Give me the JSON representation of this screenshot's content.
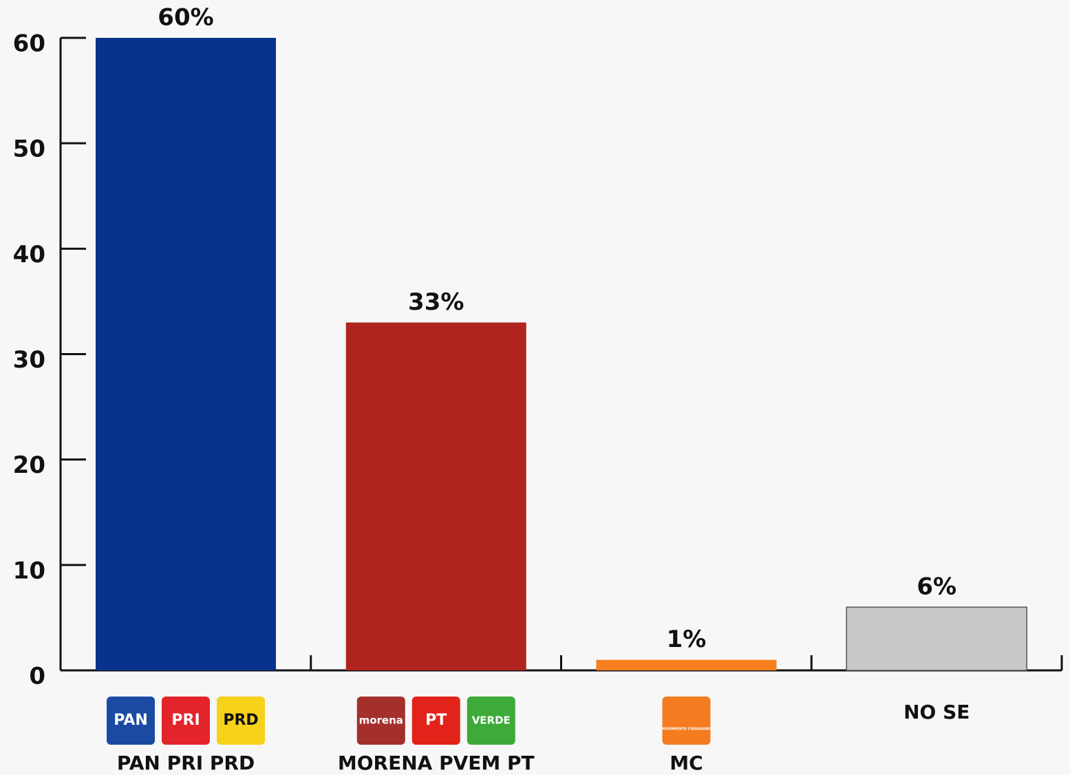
{
  "chart_data": {
    "type": "bar",
    "categories": [
      "PAN PRI PRD",
      "MORENA PVEM PT",
      "MC",
      "NO SE"
    ],
    "values": [
      60,
      33,
      1,
      6
    ],
    "value_labels": [
      "60%",
      "33%",
      "1%",
      "6%"
    ],
    "colors": [
      "#07338c",
      "#b0241f",
      "#f7801e",
      "#c8c8c8"
    ],
    "ylim": [
      0,
      60
    ],
    "yticks": [
      0,
      10,
      20,
      30,
      40,
      50,
      60
    ],
    "logos": [
      [
        {
          "label": "PAN",
          "color": "#1b4aa3"
        },
        {
          "label": "PRI",
          "color": "#e4242b"
        },
        {
          "label": "PRD",
          "color": "#f6d21a"
        }
      ],
      [
        {
          "label": "morena",
          "color": "#a3302b"
        },
        {
          "label": "PT",
          "color": "#e2231a"
        },
        {
          "label": "VERDE",
          "color": "#3daa3a"
        }
      ],
      [
        {
          "label": "MOVIMIENTO CIUDADANO",
          "color": "#f47b20"
        }
      ],
      []
    ]
  }
}
